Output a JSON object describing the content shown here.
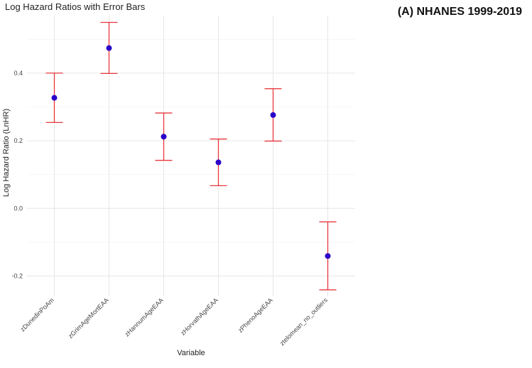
{
  "panel_label": "(A) NHANES 1999-2019",
  "colors": {
    "point": "#2a00c8",
    "errorbar": "#e8383d",
    "grid_major": "#e6e6e6",
    "grid_minor": "#f2f2f2"
  },
  "chart_data": {
    "type": "scatter",
    "title": "Log Hazard Ratios with Error Bars",
    "xlabel": "Variable",
    "ylabel": "Log Hazard Ratio (LnHR)",
    "categories": [
      "zDunedinPoAm",
      "zGrimAgeMortEAA",
      "zHannumAgeEAA",
      "zHorvathAgeEAA",
      "zPhenoAgeEAA",
      "ztelomean_no_outliers"
    ],
    "values": [
      0.327,
      0.474,
      0.212,
      0.136,
      0.276,
      -0.141
    ],
    "lower": [
      0.254,
      0.399,
      0.142,
      0.067,
      0.199,
      -0.241
    ],
    "upper": [
      0.4,
      0.55,
      0.282,
      0.205,
      0.354,
      -0.04
    ],
    "yticks": [
      -0.2,
      0.0,
      0.2,
      0.4
    ],
    "ytick_labels": [
      "-0.2",
      "0.0",
      "0.2",
      "0.4"
    ],
    "ylim": [
      -0.26,
      0.57
    ],
    "grid": true,
    "legend": "none"
  }
}
